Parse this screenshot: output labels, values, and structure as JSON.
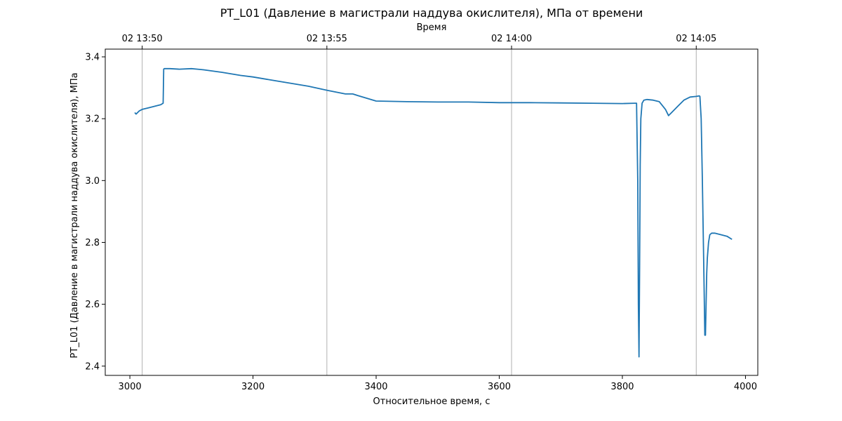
{
  "chart_data": {
    "type": "line",
    "title": "PT_L01 (Давление в магистрали наддува окислителя), МПа от времени",
    "xlabel": "Относительное время, с",
    "ylabel": "PT_L01 (Давление в магистрали наддува окислителя), МПа",
    "top_xlabel": "Время",
    "xlim": [
      2960,
      4020
    ],
    "ylim": [
      2.37,
      3.425
    ],
    "x_ticks": [
      3000,
      3200,
      3400,
      3600,
      3800,
      4000
    ],
    "x_tick_labels": [
      "3000",
      "3200",
      "3400",
      "3600",
      "3800",
      "4000"
    ],
    "y_ticks": [
      2.4,
      2.6,
      2.8,
      3.0,
      3.2,
      3.4
    ],
    "y_tick_labels": [
      "2.4",
      "2.6",
      "2.8",
      "3.0",
      "3.2",
      "3.4"
    ],
    "top_ticks": [
      3020,
      3320,
      3620,
      3920
    ],
    "top_tick_labels": [
      "02 13:50",
      "02 13:55",
      "02 14:00",
      "02 14:05"
    ],
    "grid": "vertical lines at top-axis ticks",
    "legend": "none",
    "colors": {
      "line": "#1f77b4",
      "grid": "#b0b0b0",
      "axes": "#000000"
    },
    "series": [
      {
        "x": [
          3008,
          3010,
          3015,
          3020,
          3030,
          3040,
          3050,
          3054,
          3055,
          3056,
          3065,
          3080,
          3100,
          3110,
          3120,
          3150,
          3180,
          3200,
          3230,
          3260,
          3290,
          3320,
          3350,
          3362,
          3370,
          3400,
          3450,
          3500,
          3550,
          3600,
          3650,
          3700,
          3750,
          3800,
          3820,
          3823,
          3825,
          3826,
          3827,
          3828,
          3829,
          3830,
          3832,
          3835,
          3840,
          3850,
          3860,
          3870,
          3875,
          3880,
          3890,
          3900,
          3910,
          3920,
          3925,
          3926,
          3928,
          3930,
          3932,
          3933,
          3934,
          3935,
          3936,
          3937,
          3938,
          3940,
          3942,
          3945,
          3950,
          3960,
          3970,
          3978
        ],
        "y": [
          3.22,
          3.215,
          3.225,
          3.23,
          3.235,
          3.24,
          3.245,
          3.25,
          3.36,
          3.362,
          3.362,
          3.36,
          3.362,
          3.36,
          3.358,
          3.35,
          3.34,
          3.335,
          3.325,
          3.315,
          3.305,
          3.292,
          3.28,
          3.28,
          3.275,
          3.257,
          3.255,
          3.254,
          3.254,
          3.252,
          3.252,
          3.251,
          3.25,
          3.249,
          3.25,
          3.25,
          3.0,
          2.6,
          2.43,
          2.7,
          3.05,
          3.2,
          3.25,
          3.26,
          3.262,
          3.26,
          3.255,
          3.23,
          3.21,
          3.22,
          3.24,
          3.26,
          3.27,
          3.272,
          3.274,
          3.272,
          3.2,
          3.0,
          2.75,
          2.62,
          2.5,
          2.5,
          2.6,
          2.7,
          2.75,
          2.8,
          2.825,
          2.83,
          2.83,
          2.825,
          2.82,
          2.81
        ]
      }
    ]
  }
}
